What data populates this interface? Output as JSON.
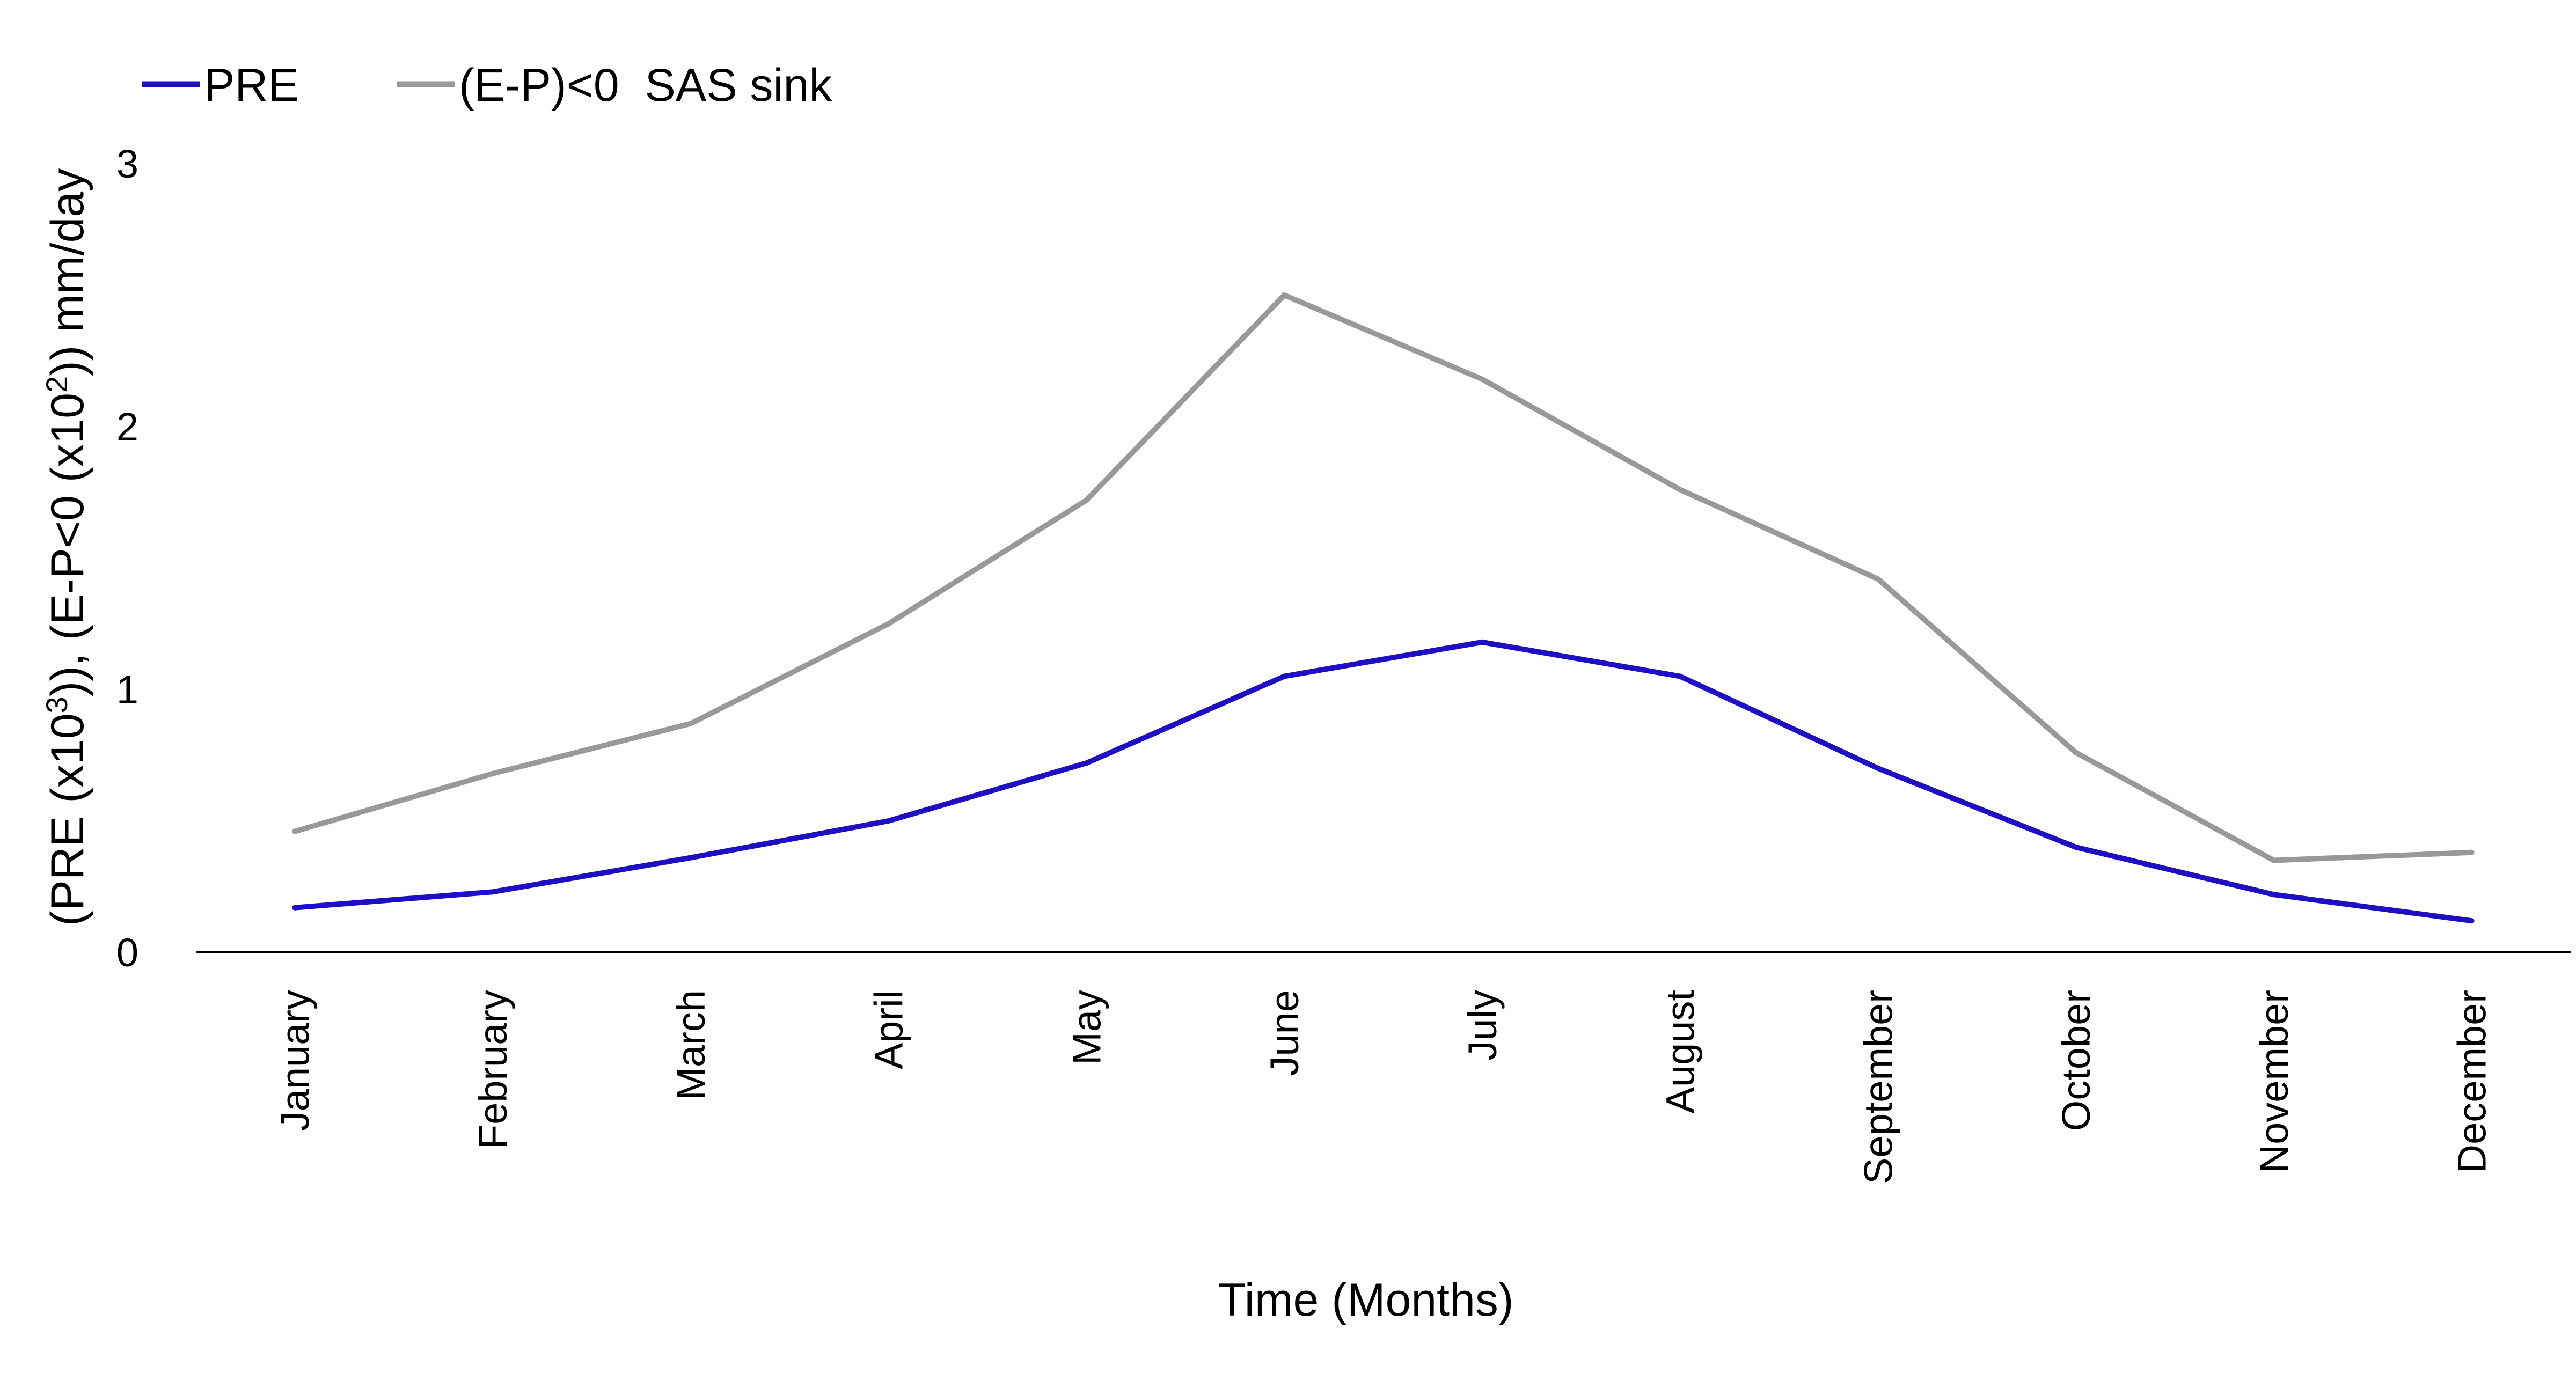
{
  "chart_data": {
    "type": "line",
    "categories": [
      "January",
      "February",
      "March",
      "April",
      "May",
      "June",
      "July",
      "August",
      "September",
      "October",
      "November",
      "December"
    ],
    "series": [
      {
        "name": "PRE",
        "color": "#1f0fc2",
        "values": [
          0.17,
          0.23,
          0.36,
          0.5,
          0.72,
          1.05,
          1.18,
          1.05,
          0.7,
          0.4,
          0.22,
          0.12
        ]
      },
      {
        "name": "(E-P)<0  SAS sink",
        "color": "#999999",
        "values": [
          0.46,
          0.68,
          0.87,
          1.25,
          1.72,
          2.5,
          2.18,
          1.76,
          1.42,
          0.76,
          0.35,
          0.38
        ]
      }
    ],
    "title": "",
    "xlabel": "Time (Months)",
    "ylabel": {
      "prefix": "(PRE (x10",
      "sup1": "3",
      "mid": ")), (E-P<0 (x10",
      "sup2": "2",
      "suffix": ")) mm/day"
    },
    "ylim": [
      0,
      3
    ],
    "yticks": [
      "0",
      "1",
      "2",
      "3"
    ],
    "grid": false,
    "legend": "top-left"
  }
}
